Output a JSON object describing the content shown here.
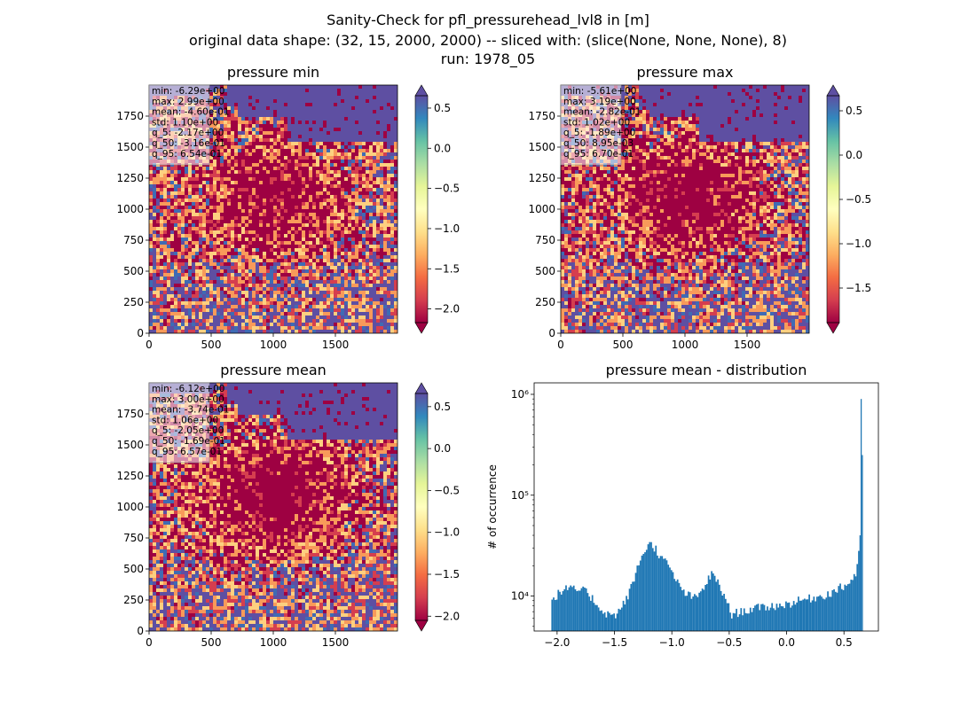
{
  "figure": {
    "title_line1": "Sanity-Check for pfl_pressurehead_lvl8 in [m]",
    "title_line2": "original data shape: (32, 15, 2000, 2000) -- sliced with: (slice(None, None, None), 8)",
    "title_line3": "run: 1978_05"
  },
  "colormap": {
    "name": "Spectral",
    "colors": [
      "#9e0142",
      "#d53e4f",
      "#f46d43",
      "#fdae61",
      "#fee08b",
      "#ffffbf",
      "#e6f598",
      "#abdda4",
      "#66c2a5",
      "#3288bd",
      "#5e4fa2"
    ],
    "extend": "both"
  },
  "panels": [
    {
      "title": "pressure min",
      "stats": [
        "min: -6.29e+00",
        "max: 2.99e+00",
        "mean: -4.60e-01",
        "std: 1.10e+00",
        "q_5: -2.17e+00",
        "q_50: -3.16e-01",
        "q_95: 6.54e-01"
      ],
      "xticks": [
        "0",
        "500",
        "1000",
        "1500"
      ],
      "yticks": [
        "0",
        "250",
        "500",
        "750",
        "1000",
        "1250",
        "1500",
        "1750"
      ],
      "colorbar": {
        "vmin": -2.17,
        "vmax": 0.654,
        "ticks": [
          -2.0,
          -1.5,
          -1.0,
          -0.5,
          0.0,
          0.5
        ],
        "labels": [
          "−2.0",
          "−1.5",
          "−1.0",
          "−0.5",
          "0.0",
          "0.5"
        ]
      }
    },
    {
      "title": "pressure max",
      "stats": [
        "min: -5.61e+00",
        "max: 3.19e+00",
        "mean: -2.82e-01",
        "std: 1.02e+00",
        "q_5: -1.89e+00",
        "q_50: 8.95e-03",
        "q_95: 6.70e-01"
      ],
      "xticks": [
        "0",
        "500",
        "1000",
        "1500"
      ],
      "yticks": [
        "0",
        "250",
        "500",
        "750",
        "1000",
        "1250",
        "1500",
        "1750"
      ],
      "colorbar": {
        "vmin": -1.89,
        "vmax": 0.67,
        "ticks": [
          -1.5,
          -1.0,
          -0.5,
          0.0,
          0.5
        ],
        "labels": [
          "−1.5",
          "−1.0",
          "−0.5",
          "0.0",
          "0.5"
        ]
      }
    },
    {
      "title": "pressure mean",
      "stats": [
        "min: -6.12e+00",
        "max: 3.00e+00",
        "mean: -3.74e-01",
        "std: 1.06e+00",
        "q_5: -2.05e+00",
        "q_50: -1.69e-01",
        "q_95: 6.57e-01"
      ],
      "xticks": [
        "0",
        "500",
        "1000",
        "1500"
      ],
      "yticks": [
        "0",
        "250",
        "500",
        "750",
        "1000",
        "1250",
        "1500",
        "1750"
      ],
      "colorbar": {
        "vmin": -2.05,
        "vmax": 0.657,
        "ticks": [
          -2.0,
          -1.5,
          -1.0,
          -0.5,
          0.0,
          0.5
        ],
        "labels": [
          "−2.0",
          "−1.5",
          "−1.0",
          "−0.5",
          "0.0",
          "0.5"
        ]
      }
    }
  ],
  "chart_data": {
    "type": "bar",
    "title": "pressure mean - distribution",
    "xlabel": "",
    "ylabel": "# of occurrence",
    "yscale": "log",
    "color": "#1f77b4",
    "xlim": [
      -2.2,
      0.8
    ],
    "ylim": [
      4500,
      1300000
    ],
    "xticks": [
      -2.0,
      -1.5,
      -1.0,
      -0.5,
      0.0,
      0.5
    ],
    "xtick_labels": [
      "−2.0",
      "−1.5",
      "−1.0",
      "−0.5",
      "0.0",
      "0.5"
    ],
    "yticks": [
      10000,
      100000,
      1000000
    ],
    "ytick_labels": [
      "10⁴",
      "10⁵",
      "10⁶"
    ],
    "points": [
      [
        -2.05,
        9000
      ],
      [
        -2.0,
        10500
      ],
      [
        -1.95,
        11500
      ],
      [
        -1.9,
        12000
      ],
      [
        -1.85,
        11500
      ],
      [
        -1.8,
        11500
      ],
      [
        -1.75,
        11000
      ],
      [
        -1.7,
        9500
      ],
      [
        -1.65,
        8000
      ],
      [
        -1.6,
        7000
      ],
      [
        -1.55,
        6500
      ],
      [
        -1.5,
        6500
      ],
      [
        -1.45,
        7500
      ],
      [
        -1.4,
        9500
      ],
      [
        -1.35,
        13000
      ],
      [
        -1.3,
        20000
      ],
      [
        -1.25,
        28000
      ],
      [
        -1.2,
        33000
      ],
      [
        -1.15,
        30000
      ],
      [
        -1.1,
        24000
      ],
      [
        -1.05,
        21000
      ],
      [
        -1.0,
        17000
      ],
      [
        -0.95,
        13000
      ],
      [
        -0.9,
        11000
      ],
      [
        -0.85,
        10000
      ],
      [
        -0.8,
        9500
      ],
      [
        -0.75,
        11000
      ],
      [
        -0.7,
        14000
      ],
      [
        -0.65,
        17000
      ],
      [
        -0.6,
        13000
      ],
      [
        -0.55,
        10000
      ],
      [
        -0.52,
        9000
      ],
      [
        -0.5,
        6500
      ],
      [
        -0.45,
        6800
      ],
      [
        -0.4,
        7000
      ],
      [
        -0.3,
        7500
      ],
      [
        -0.2,
        7800
      ],
      [
        -0.1,
        8000
      ],
      [
        0.0,
        8300
      ],
      [
        0.1,
        9000
      ],
      [
        0.2,
        9500
      ],
      [
        0.3,
        10000
      ],
      [
        0.4,
        11000
      ],
      [
        0.45,
        12000
      ],
      [
        0.5,
        12500
      ],
      [
        0.55,
        14000
      ],
      [
        0.6,
        17000
      ],
      [
        0.62,
        25000
      ],
      [
        0.63,
        40000
      ],
      [
        0.64,
        90000
      ],
      [
        0.645,
        900000
      ],
      [
        0.655,
        250000
      ]
    ]
  }
}
